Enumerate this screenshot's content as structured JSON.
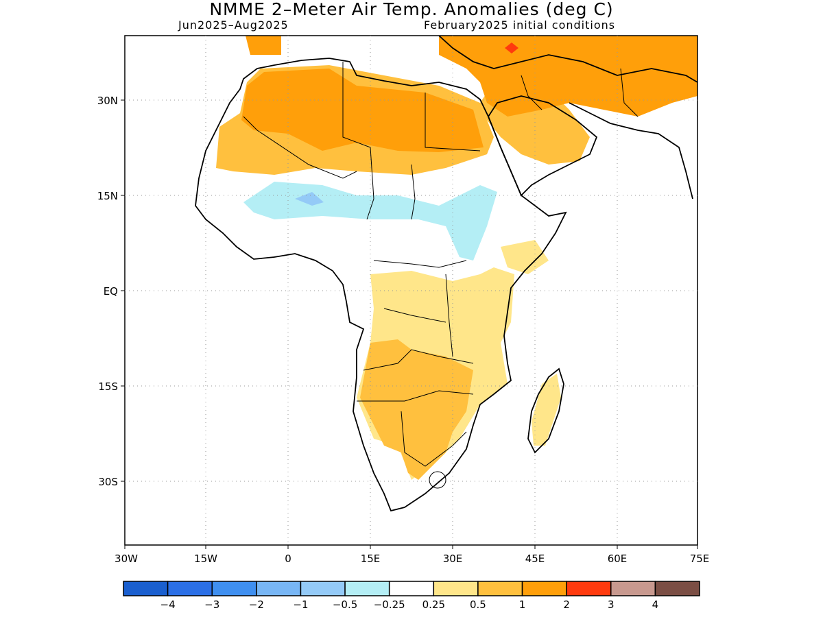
{
  "title": "NMME 2–Meter Air Temp. Anomalies (deg C)",
  "period": "Jun2025–Aug2025",
  "initial_conditions": "February2025 initial conditions",
  "axes": {
    "lat_labels": [
      "30N",
      "15N",
      "EQ",
      "15S",
      "30S"
    ],
    "lon_labels": [
      "30W",
      "15W",
      "0",
      "15E",
      "30E",
      "45E",
      "60E",
      "75E"
    ]
  },
  "colorbar": {
    "colors": [
      "#1a5fcf",
      "#2b6fe6",
      "#3f8ff0",
      "#78b6f5",
      "#94caf7",
      "#b4eef5",
      "#ffffff",
      "#ffe68a",
      "#ffc03e",
      "#ff9f0a",
      "#ff3a0e",
      "#c8998f",
      "#7b4e44"
    ],
    "labels": [
      "−4",
      "−3",
      "−2",
      "−1",
      "−0.5",
      "−0.25",
      "0.25",
      "0.5",
      "1",
      "2",
      "3",
      "4"
    ]
  }
}
